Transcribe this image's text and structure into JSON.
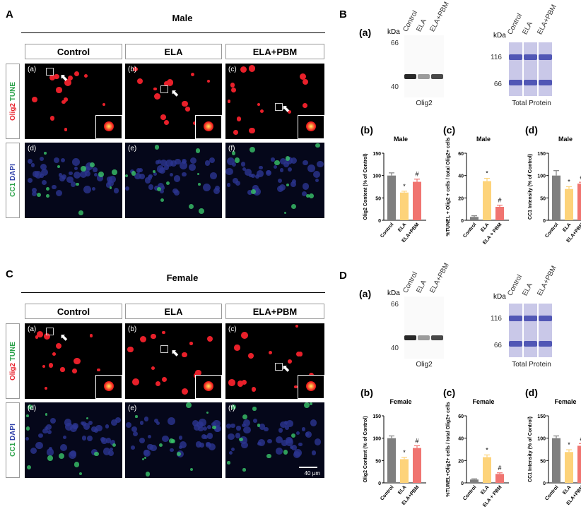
{
  "sections": [
    {
      "letter": "A",
      "sex": "Male",
      "columns": [
        "Control",
        "ELA",
        "ELA+PBM"
      ],
      "rows": [
        {
          "label_a": "Olig2",
          "label_b": " TUNE",
          "tags": [
            "(a)",
            "(b)",
            "(c)"
          ]
        },
        {
          "label_a": "CC1",
          "label_b": " DAPI",
          "tags": [
            "(d)",
            "(e)",
            "(f)"
          ]
        }
      ]
    },
    {
      "letter": "C",
      "sex": "Female",
      "columns": [
        "Control",
        "ELA",
        "ELA+PBM"
      ],
      "rows": [
        {
          "label_a": "Olig2",
          "label_b": " TUNE",
          "tags": [
            "(a)",
            "(b)",
            "(c)"
          ]
        },
        {
          "label_a": "CC1",
          "label_b": " DAPI",
          "tags": [
            "(d)",
            "(e)",
            "(f)"
          ]
        }
      ],
      "scale_bar": "40 μm"
    }
  ],
  "colors": {
    "control": "#7f7f7f",
    "ela": "#fdd37a",
    "elapbm": "#f07470",
    "red": "#e8202a",
    "green": "#2ca24a",
    "blue": "#2e3fa8"
  },
  "blots": [
    {
      "letter": "B",
      "sub": "(a)",
      "kda": "kDa",
      "lanes": [
        "Control",
        "ELA",
        "ELA+PBM"
      ],
      "olig2": {
        "markers": [
          "66",
          "40"
        ],
        "caption": "Olig2"
      },
      "total": {
        "markers": [
          "116",
          "66"
        ],
        "caption": "Total Protein"
      }
    },
    {
      "letter": "D",
      "sub": "(a)",
      "kda": "kDa",
      "lanes": [
        "Control",
        "ELA",
        "ELA+PBM"
      ],
      "olig2": {
        "markers": [
          "66",
          "40"
        ],
        "caption": "Olig2"
      },
      "total": {
        "markers": [
          "116",
          "66"
        ],
        "caption": "Total Protein"
      }
    }
  ],
  "chart_data": [
    {
      "type": "bar",
      "panel": "(b)",
      "title": "Male",
      "ylabel": "Olig2 Content (% of Control)",
      "ylim": [
        0,
        150
      ],
      "yticks": [
        "0",
        "50",
        "100",
        "150"
      ],
      "categories": [
        "Control",
        "ELA",
        "ELA+PBM"
      ],
      "values": [
        100,
        62,
        86
      ],
      "errors": [
        6,
        3,
        6
      ],
      "annotations": [
        "",
        "*",
        "#"
      ]
    },
    {
      "type": "bar",
      "panel": "(c)",
      "title": "Male",
      "ylabel": "%TUNEL + Olig2 + cells / total Olig2+ cells",
      "ylim": [
        0,
        60
      ],
      "yticks": [
        "0",
        "20",
        "40",
        "60"
      ],
      "categories": [
        "Control",
        "ELA",
        "ELA + PBM"
      ],
      "values": [
        3,
        35,
        12
      ],
      "errors": [
        1,
        2.5,
        1.5
      ],
      "annotations": [
        "",
        "*",
        "#"
      ]
    },
    {
      "type": "bar",
      "panel": "(d)",
      "title": "Male",
      "ylabel": "CC1 Intensity (% of Control)",
      "ylim": [
        0,
        150
      ],
      "yticks": [
        "0",
        "50",
        "100",
        "150"
      ],
      "categories": [
        "Control",
        "ELA",
        "ELA+PBM"
      ],
      "values": [
        100,
        70,
        82
      ],
      "errors": [
        11,
        5,
        3
      ],
      "annotations": [
        "",
        "*",
        "#"
      ]
    },
    {
      "type": "bar",
      "panel": "(b)",
      "title": "Female",
      "ylabel": "Olig2 Content (% of Control)",
      "ylim": [
        0,
        150
      ],
      "yticks": [
        "0",
        "50",
        "100",
        "150"
      ],
      "categories": [
        "Control",
        "ELA",
        "ELA+PBM"
      ],
      "values": [
        100,
        53,
        78
      ],
      "errors": [
        5,
        4,
        5
      ],
      "annotations": [
        "",
        "*",
        "#"
      ]
    },
    {
      "type": "bar",
      "panel": "(c)",
      "title": "Female",
      "ylabel": "%TUNEL+Olig2+ cells / total Olig2+ cells",
      "ylim": [
        0,
        60
      ],
      "yticks": [
        "0",
        "20",
        "40",
        "60"
      ],
      "categories": [
        "Control",
        "ELA",
        "ELA + PBM"
      ],
      "values": [
        3,
        23,
        8
      ],
      "errors": [
        0.6,
        2,
        1
      ],
      "annotations": [
        "",
        "*",
        "#"
      ]
    },
    {
      "type": "bar",
      "panel": "(d)",
      "title": "Female",
      "ylabel": "CC1 Intensity (% of Control)",
      "ylim": [
        0,
        150
      ],
      "yticks": [
        "0",
        "50",
        "100",
        "150"
      ],
      "categories": [
        "Control",
        "ELA",
        "ELA+PBM"
      ],
      "values": [
        100,
        69,
        83
      ],
      "errors": [
        5,
        5,
        5
      ],
      "annotations": [
        "",
        "*",
        "#"
      ]
    }
  ]
}
